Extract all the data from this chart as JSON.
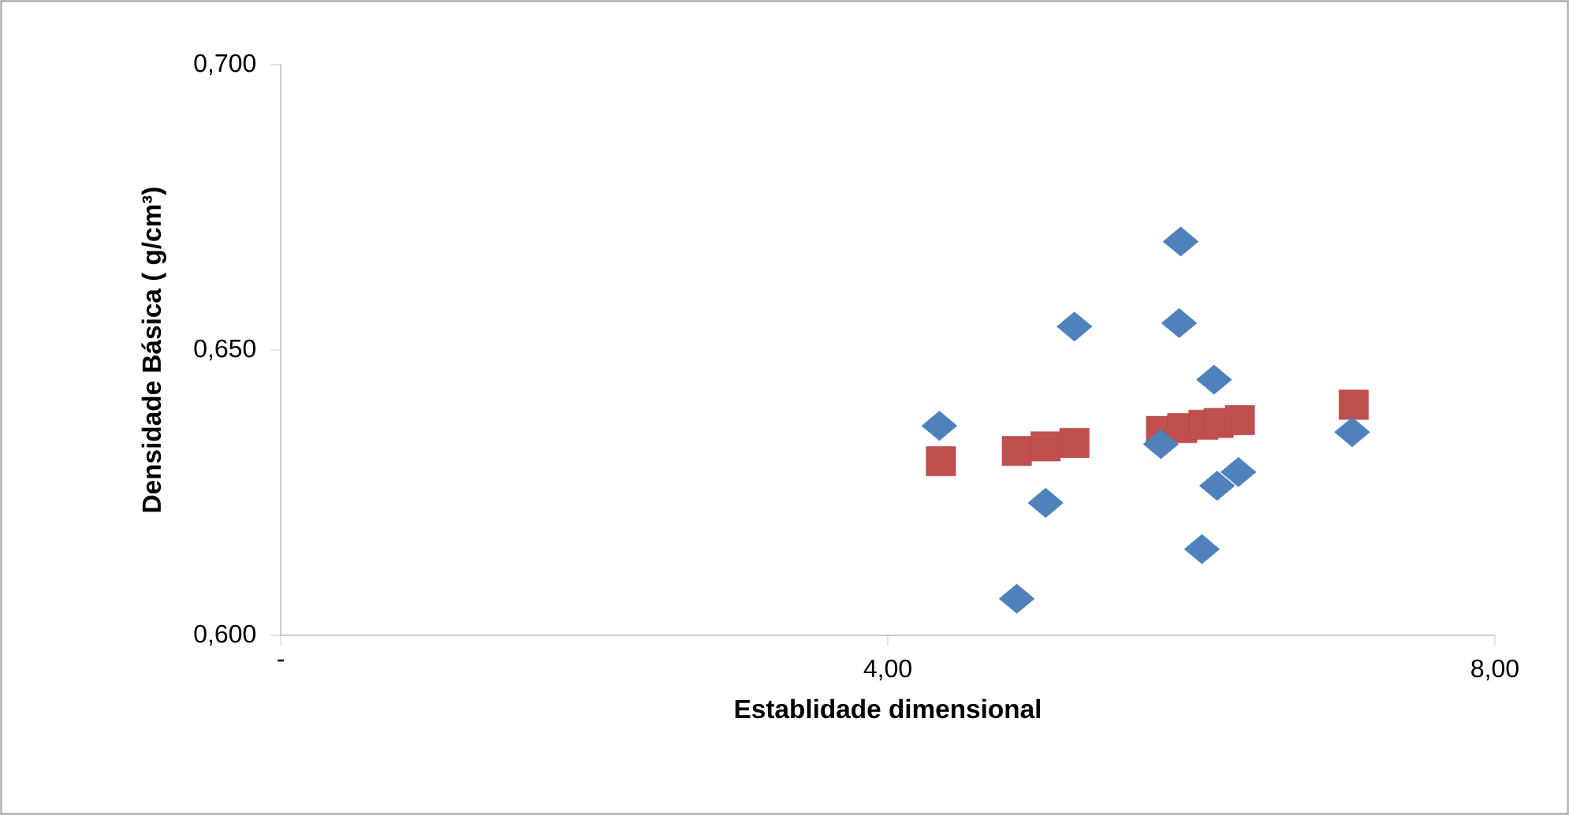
{
  "chart_data": {
    "type": "scatter",
    "xlabel": "Establidade dimensional",
    "ylabel": "Densidade Básica ( g/cm³)",
    "xlim": [
      0,
      8
    ],
    "ylim": [
      0.6,
      0.7
    ],
    "xticks": [
      {
        "value": 0,
        "label": "-"
      },
      {
        "value": 4,
        "label": "4,00"
      },
      {
        "value": 8,
        "label": "8,00"
      }
    ],
    "yticks": [
      {
        "value": 0.6,
        "label": "0,600"
      },
      {
        "value": 0.65,
        "label": "0,650"
      },
      {
        "value": 0.7,
        "label": "0,700"
      }
    ],
    "series": [
      {
        "color": "#4f81bd",
        "marker": "diamond",
        "x": [
          4.34,
          4.85,
          5.04,
          5.23,
          5.93,
          5.92,
          5.8,
          6.15,
          6.07,
          6.17,
          6.31,
          7.06
        ],
        "values": [
          0.6367,
          0.6064,
          0.6232,
          0.6541,
          0.669,
          0.6547,
          0.6335,
          0.6448,
          0.6151,
          0.6262,
          0.6286,
          0.6356
        ]
      },
      {
        "color": "#c0504d",
        "marker": "square",
        "x": [
          4.35,
          4.85,
          5.04,
          5.23,
          5.8,
          5.94,
          6.08,
          6.18,
          6.32,
          7.07
        ],
        "values": [
          0.6305,
          0.6323,
          0.6331,
          0.6337,
          0.6358,
          0.6363,
          0.6369,
          0.6372,
          0.6377,
          0.6404
        ]
      }
    ]
  }
}
